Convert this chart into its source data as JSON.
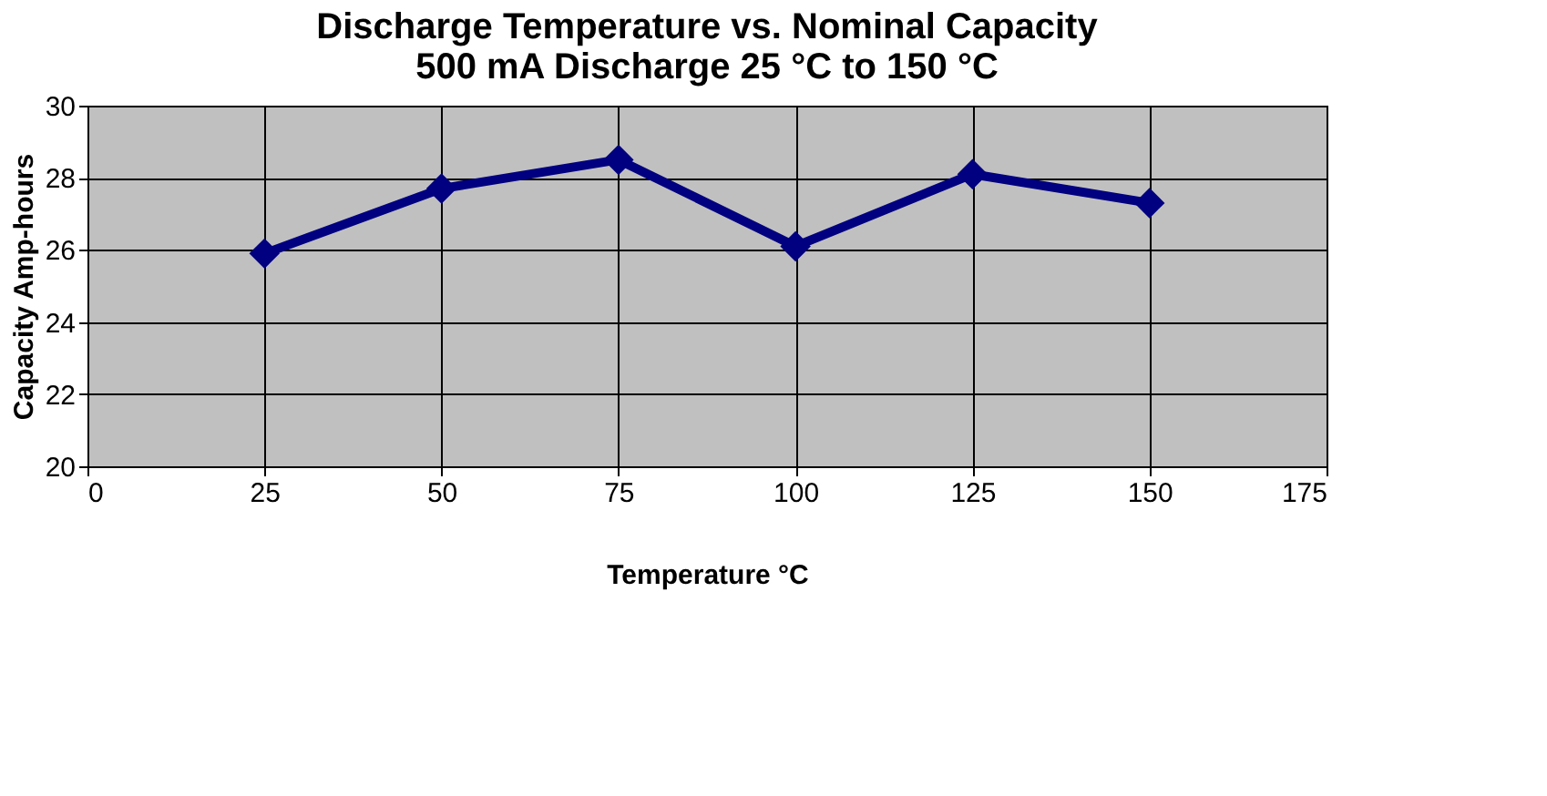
{
  "chart_data": {
    "type": "line",
    "title": [
      "Discharge Temperature vs. Nominal Capacity",
      "500 mA Discharge 25 °C to 150 °C"
    ],
    "xlabel": "Temperature °C",
    "ylabel": "Capacity Amp-hours",
    "x": [
      25,
      50,
      75,
      100,
      125,
      150
    ],
    "series": [
      {
        "color": "#000080",
        "values": [
          25.9,
          27.7,
          28.5,
          26.1,
          28.1,
          27.3
        ]
      }
    ],
    "xlim": [
      0,
      175
    ],
    "xticks": [
      0,
      25,
      50,
      75,
      100,
      125,
      150,
      175
    ],
    "ylim": [
      20,
      30
    ],
    "yticks": [
      20,
      22,
      24,
      26,
      28,
      30
    ],
    "grid": true,
    "marker": "diamond",
    "line_style": "solid"
  }
}
